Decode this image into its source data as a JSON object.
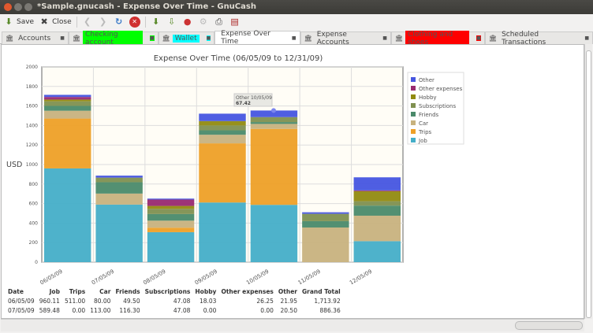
{
  "window": {
    "title": "*Sample.gnucash - Expense Over Time - GnuCash"
  },
  "toolbar": {
    "save_label": "Save",
    "close_label": "Close"
  },
  "tabs": [
    {
      "label": "Accounts",
      "bg": ""
    },
    {
      "label": "Checking account",
      "bg": "#00ff00"
    },
    {
      "label": "Wallet",
      "bg": "#00ffff"
    },
    {
      "label": "Expense Over Time",
      "bg": "",
      "active": true
    },
    {
      "label": "Expense Accounts",
      "bg": ""
    },
    {
      "label": "Clothing and shoes",
      "bg": "#ff0000"
    },
    {
      "label": "Scheduled Transactions",
      "bg": ""
    }
  ],
  "chart_data": {
    "type": "bar",
    "stacked": true,
    "title": "Expense Over Time (06/05/09 to 12/31/09)",
    "ylabel": "USD",
    "ylim": [
      0,
      2000
    ],
    "yticks": [
      "0",
      "200",
      "400",
      "600",
      "800",
      "1000",
      "1200",
      "1400",
      "1600",
      "1800",
      "2000"
    ],
    "categories": [
      "06/05/09",
      "07/05/09",
      "08/05/09",
      "09/05/09",
      "10/05/09",
      "11/05/09",
      "12/05/09"
    ],
    "grid": true,
    "legend_position": "right",
    "series": [
      {
        "name": "Job",
        "color": "#44aec8",
        "values": [
          960.11,
          589.48,
          307,
          611,
          587,
          0,
          215
        ]
      },
      {
        "name": "Trips",
        "color": "#eea027",
        "values": [
          511.0,
          0.0,
          46,
          606,
          778,
          0,
          0
        ]
      },
      {
        "name": "Car",
        "color": "#c8b27e",
        "values": [
          80.0,
          113.0,
          72,
          88,
          51,
          355,
          261
        ]
      },
      {
        "name": "Friends",
        "color": "#4a8a6a",
        "values": [
          49.5,
          116.3,
          68,
          46,
          19,
          65,
          103
        ]
      },
      {
        "name": "Subscriptions",
        "color": "#7f9050",
        "values": [
          47.08,
          47.08,
          53,
          49,
          51,
          75,
          45
        ]
      },
      {
        "name": "Hobby",
        "color": "#918a10",
        "values": [
          18.03,
          0.0,
          30,
          45,
          0,
          0,
          103
        ]
      },
      {
        "name": "Other expenses",
        "color": "#992a70",
        "values": [
          26.25,
          0.0,
          65,
          0,
          0,
          0,
          8
        ]
      },
      {
        "name": "Other",
        "color": "#4655e0",
        "values": [
          21.95,
          20.5,
          10,
          76,
          67.42,
          16,
          134
        ]
      }
    ],
    "tooltip": {
      "label": "Other 10/05/09",
      "value": "67.42"
    }
  },
  "table": {
    "headers": [
      "Date",
      "Job",
      "Trips",
      "Car",
      "Friends",
      "Subscriptions",
      "Hobby",
      "Other expenses",
      "Other",
      "Grand Total"
    ],
    "rows": [
      [
        "06/05/09",
        "960.11",
        "511.00",
        "80.00",
        "49.50",
        "47.08",
        "18.03",
        "26.25",
        "21.95",
        "1,713.92"
      ],
      [
        "07/05/09",
        "589.48",
        "0.00",
        "113.00",
        "116.30",
        "47.08",
        "0.00",
        "0.00",
        "20.50",
        "886.36"
      ]
    ]
  }
}
